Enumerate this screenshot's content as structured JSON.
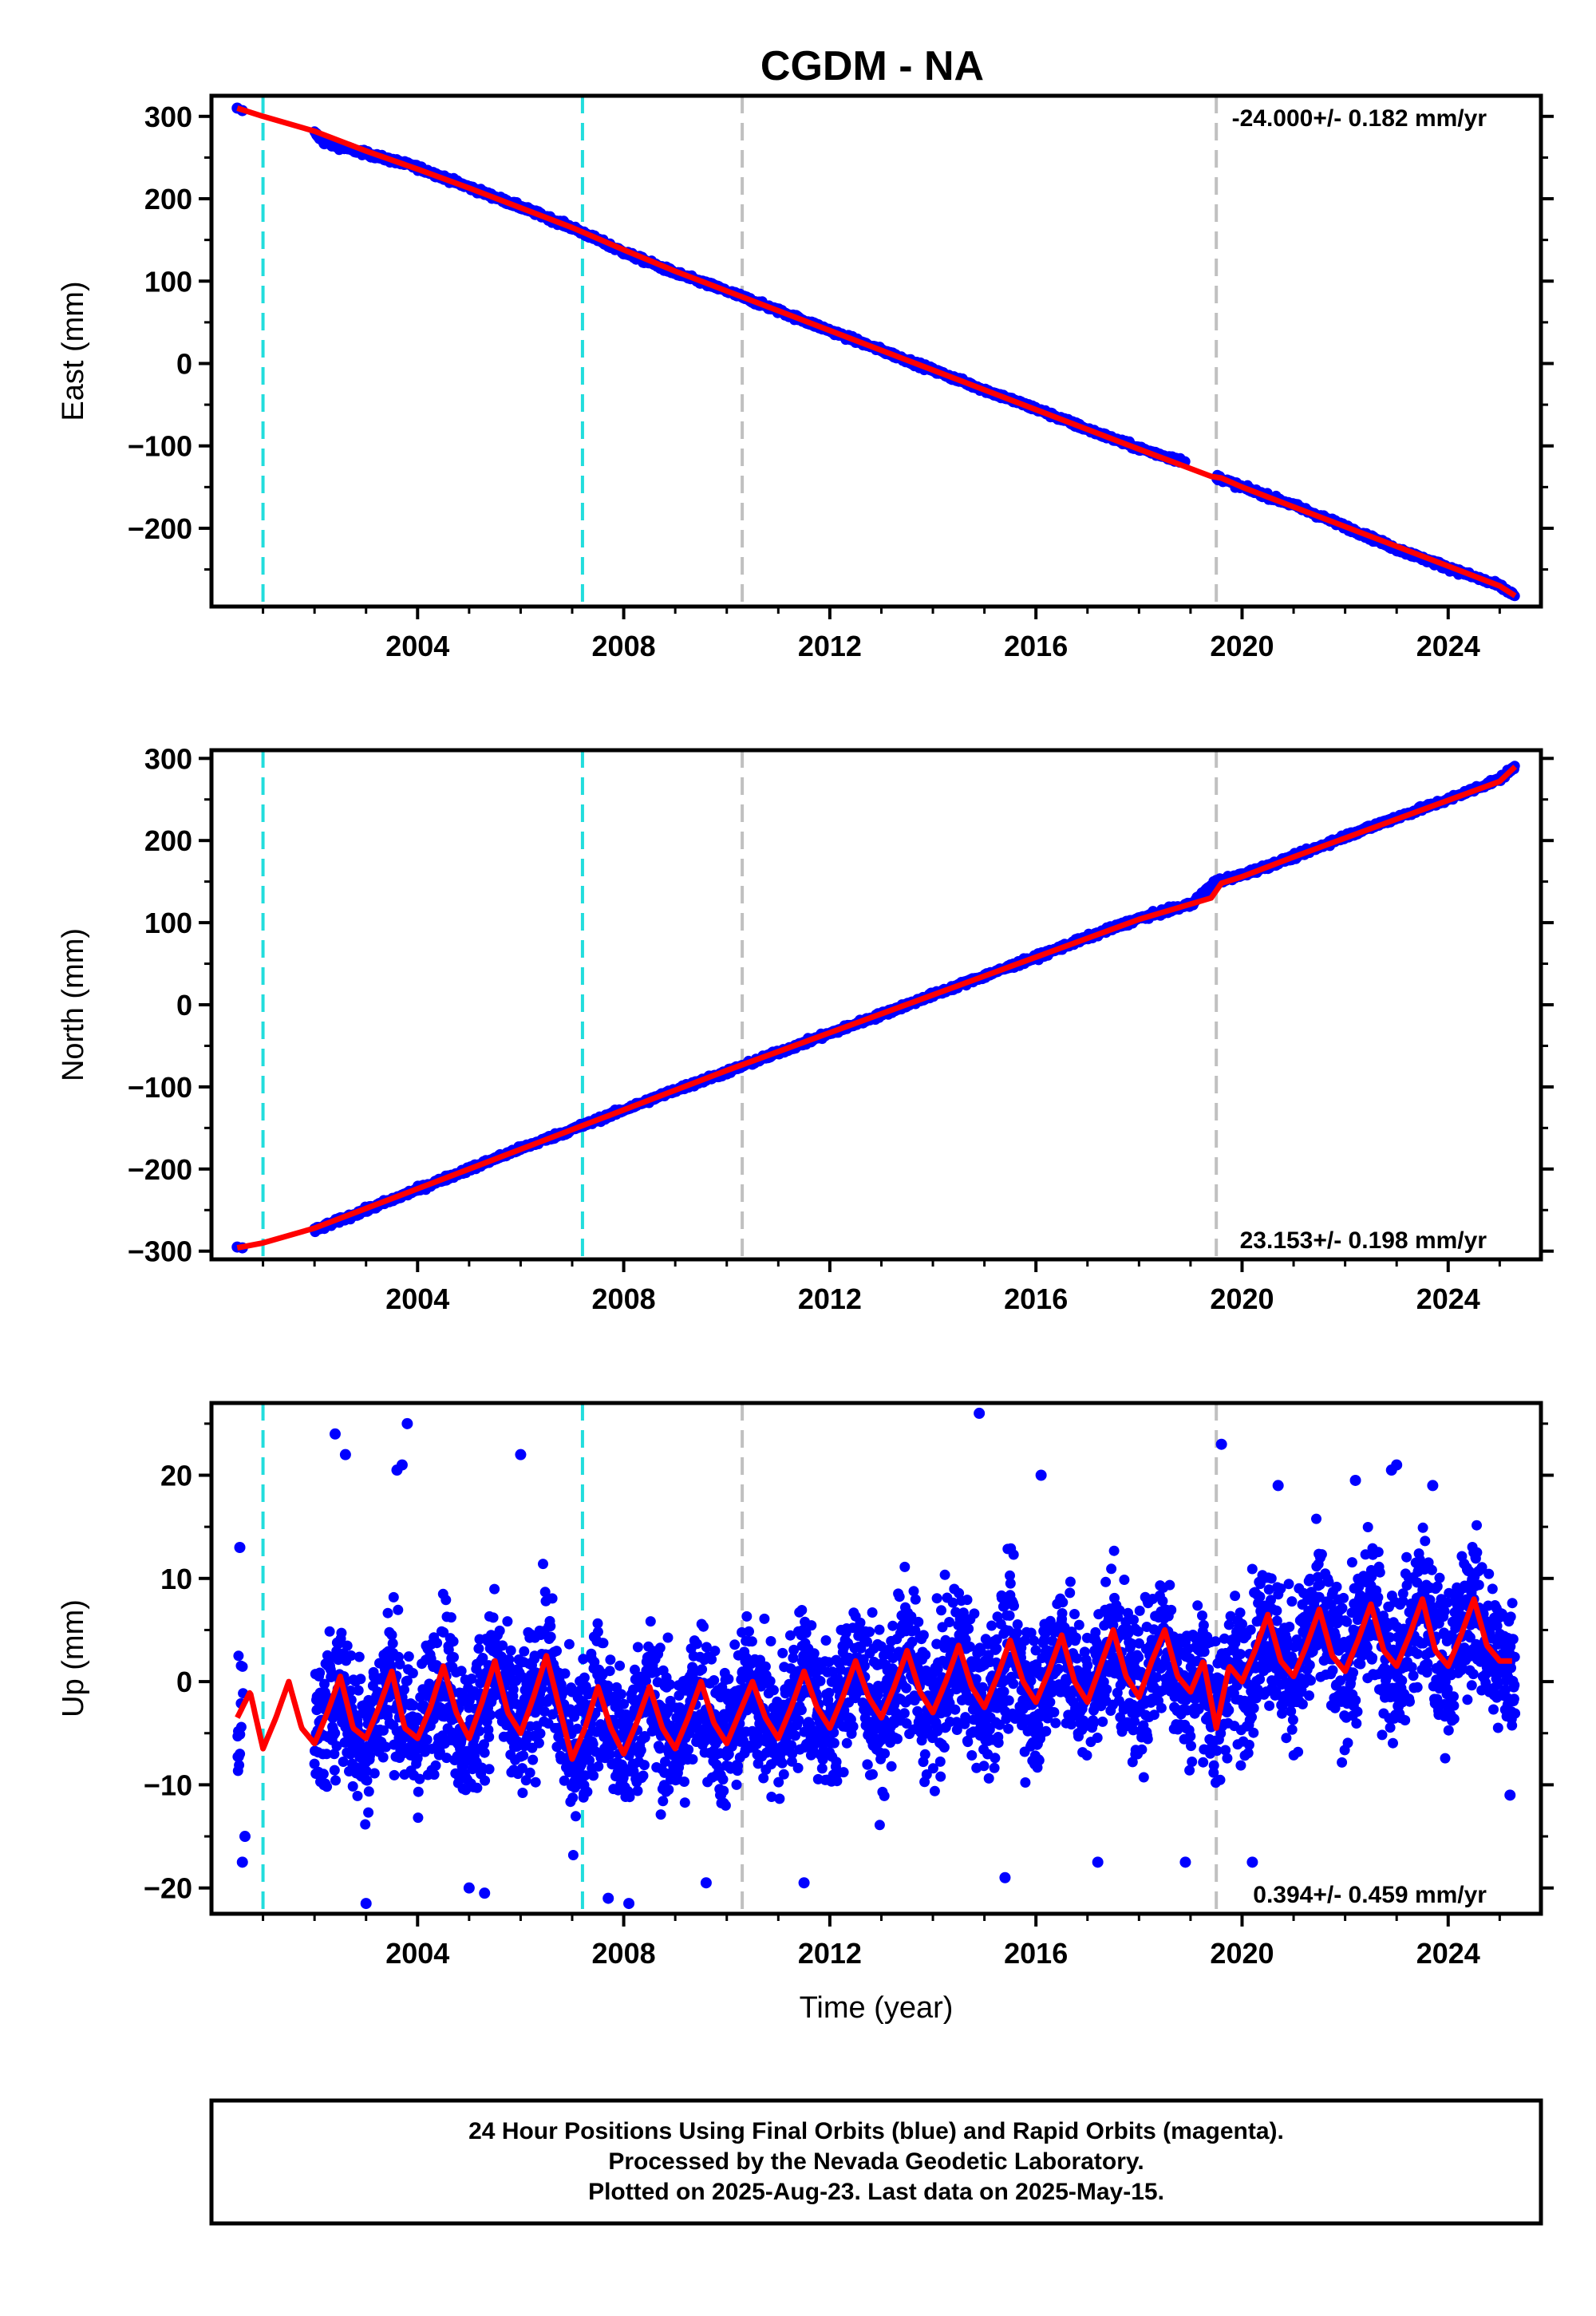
{
  "title": "CGDM - NA",
  "footer": {
    "lines": [
      "24 Hour Positions Using Final Orbits (blue) and Rapid Orbits (magenta).",
      "Processed by the Nevada Geodetic Laboratory.",
      "Plotted on 2025-Aug-23. Last data on 2025-May-15."
    ]
  },
  "colors": {
    "points": "#0000ff",
    "fit": "#ff0000",
    "equipment_line": "#22dddd",
    "event_line": "#c0c0c0"
  },
  "chart_data": [
    {
      "type": "scatter",
      "component": "east",
      "ylabel": "East (mm)",
      "xlabel": "",
      "xlim": [
        2000.0,
        2025.8
      ],
      "ylim": [
        -295,
        325
      ],
      "yticks": [
        300,
        200,
        100,
        0,
        -100,
        -200
      ],
      "ytick_labels": [
        "300",
        "200",
        "100",
        "0",
        "−100",
        "−200"
      ],
      "xticks": [
        2004,
        2008,
        2012,
        2016,
        2020,
        2024
      ],
      "xtick_labels": [
        "2004",
        "2008",
        "2012",
        "2016",
        "2020",
        "2024"
      ],
      "rate_label": "-24.000+/- 0.182 mm/yr",
      "rate_position": "top-right",
      "equipment_lines": [
        2001.0,
        2007.2
      ],
      "event_lines": [
        2010.3,
        2019.5
      ],
      "series": [
        {
          "values_kind": "points",
          "x": [
            2000.5,
            2000.6,
            2002.0,
            2002.2,
            2003.0,
            2004.0,
            2005.0,
            2006.0,
            2007.0,
            2008.0,
            2009.0,
            2010.0,
            2011.0,
            2012.0,
            2013.0,
            2014.0,
            2015.0,
            2016.0,
            2017.0,
            2018.0,
            2018.8,
            2019.6,
            2020.0,
            2021.0,
            2022.0,
            2023.0,
            2024.0,
            2025.0,
            2025.3
          ],
          "y": [
            310,
            307,
            280,
            268,
            255,
            238,
            214,
            190,
            165,
            135,
            110,
            88,
            64,
            40,
            16,
            -8,
            -32,
            -55,
            -80,
            -103,
            -118,
            -140,
            -150,
            -172,
            -198,
            -225,
            -248,
            -270,
            -282
          ]
        },
        {
          "values_kind": "fit",
          "x": [
            2000.5,
            2001.0,
            2002.0,
            2003.0,
            2004.0,
            2005.0,
            2006.0,
            2007.0,
            2008.0,
            2009.0,
            2010.0,
            2011.0,
            2012.0,
            2013.0,
            2014.0,
            2015.0,
            2016.0,
            2017.0,
            2018.0,
            2019.4,
            2019.6,
            2020.0,
            2021.0,
            2022.0,
            2023.0,
            2024.0,
            2025.0,
            2025.3
          ],
          "y": [
            310,
            300,
            282,
            258,
            236,
            213,
            189,
            165,
            138,
            112,
            88,
            64,
            40,
            16,
            -8,
            -32,
            -56,
            -80,
            -104,
            -137,
            -139,
            -150,
            -174,
            -198,
            -222,
            -246,
            -270,
            -282
          ]
        }
      ]
    },
    {
      "type": "scatter",
      "component": "north",
      "ylabel": "North (mm)",
      "xlabel": "",
      "xlim": [
        2000.0,
        2025.8
      ],
      "ylim": [
        -310,
        310
      ],
      "yticks": [
        300,
        200,
        100,
        0,
        -100,
        -200,
        -300
      ],
      "ytick_labels": [
        "300",
        "200",
        "100",
        "0",
        "−100",
        "−200",
        "−300"
      ],
      "xticks": [
        2004,
        2008,
        2012,
        2016,
        2020,
        2024
      ],
      "xtick_labels": [
        "2004",
        "2008",
        "2012",
        "2016",
        "2020",
        "2024"
      ],
      "rate_label": "23.153+/- 0.198 mm/yr",
      "rate_position": "bottom-right",
      "equipment_lines": [
        2001.0,
        2007.2
      ],
      "event_lines": [
        2010.3,
        2019.5
      ],
      "series": [
        {
          "values_kind": "points",
          "x": [
            2000.5,
            2000.6,
            2002.0,
            2002.5,
            2003.0,
            2004.0,
            2005.0,
            2006.0,
            2007.0,
            2008.0,
            2009.0,
            2010.0,
            2011.0,
            2012.0,
            2013.0,
            2014.0,
            2015.0,
            2016.0,
            2017.0,
            2018.0,
            2019.0,
            2019.5,
            2020.0,
            2021.0,
            2022.0,
            2023.0,
            2024.0,
            2025.0,
            2025.3
          ],
          "y": [
            -295,
            -296,
            -275,
            -262,
            -250,
            -225,
            -200,
            -175,
            -152,
            -128,
            -104,
            -82,
            -58,
            -35,
            -12,
            12,
            35,
            58,
            82,
            105,
            122,
            150,
            158,
            180,
            205,
            228,
            250,
            275,
            290
          ]
        },
        {
          "values_kind": "fit",
          "x": [
            2000.5,
            2001.0,
            2002.0,
            2003.0,
            2004.0,
            2005.0,
            2006.0,
            2007.0,
            2008.0,
            2009.0,
            2010.0,
            2011.0,
            2012.0,
            2013.0,
            2014.0,
            2015.0,
            2016.0,
            2017.0,
            2018.0,
            2019.4,
            2019.6,
            2020.0,
            2021.0,
            2022.0,
            2023.0,
            2024.0,
            2025.0,
            2025.3
          ],
          "y": [
            -296,
            -290,
            -272,
            -248,
            -224,
            -200,
            -176,
            -152,
            -128,
            -104,
            -80,
            -57,
            -34,
            -11,
            12,
            35,
            58,
            81,
            104,
            130,
            148,
            156,
            180,
            203,
            226,
            249,
            272,
            290
          ]
        }
      ]
    },
    {
      "type": "scatter",
      "component": "up",
      "ylabel": "Up (mm)",
      "xlabel": "Time (year)",
      "xlim": [
        2000.0,
        2025.8
      ],
      "ylim": [
        -22.5,
        27
      ],
      "yticks": [
        20,
        10,
        0,
        -10,
        -20
      ],
      "ytick_labels": [
        "20",
        "10",
        "0",
        "−10",
        "−20"
      ],
      "xticks": [
        2004,
        2008,
        2012,
        2016,
        2020,
        2024
      ],
      "xtick_labels": [
        "2004",
        "2008",
        "2012",
        "2016",
        "2020",
        "2024"
      ],
      "rate_label": "0.394+/- 0.459 mm/yr",
      "rate_position": "bottom-right",
      "equipment_lines": [
        2001.0,
        2007.2
      ],
      "event_lines": [
        2010.3,
        2019.5
      ],
      "point_scatter_mm": 5,
      "series": [
        {
          "values_kind": "fit",
          "x": [
            2000.5,
            2000.75,
            2001.0,
            2001.25,
            2001.5,
            2001.75,
            2002.0,
            2002.25,
            2002.5,
            2002.75,
            2003.0,
            2003.25,
            2003.5,
            2003.75,
            2004.0,
            2004.25,
            2004.5,
            2004.75,
            2005.0,
            2005.25,
            2005.5,
            2005.75,
            2006.0,
            2006.25,
            2006.5,
            2006.75,
            2007.0,
            2007.25,
            2007.5,
            2007.75,
            2008.0,
            2008.25,
            2008.5,
            2008.75,
            2009.0,
            2009.25,
            2009.5,
            2009.75,
            2010.0,
            2010.25,
            2010.5,
            2010.75,
            2011.0,
            2011.25,
            2011.5,
            2011.75,
            2012.0,
            2012.25,
            2012.5,
            2012.75,
            2013.0,
            2013.25,
            2013.5,
            2013.75,
            2014.0,
            2014.25,
            2014.5,
            2014.75,
            2015.0,
            2015.25,
            2015.5,
            2015.75,
            2016.0,
            2016.25,
            2016.5,
            2016.75,
            2017.0,
            2017.25,
            2017.5,
            2017.75,
            2018.0,
            2018.25,
            2018.5,
            2018.75,
            2019.0,
            2019.25,
            2019.5,
            2019.75,
            2020.0,
            2020.25,
            2020.5,
            2020.75,
            2021.0,
            2021.25,
            2021.5,
            2021.75,
            2022.0,
            2022.25,
            2022.5,
            2022.75,
            2023.0,
            2023.25,
            2023.5,
            2023.75,
            2024.0,
            2024.25,
            2024.5,
            2024.75,
            2025.0,
            2025.25
          ],
          "y": [
            -3.5,
            -1,
            -6.5,
            -3.5,
            0,
            -4.5,
            -6,
            -3,
            0.5,
            -4.5,
            -5.5,
            -2.5,
            1,
            -4.5,
            -5.5,
            -2.5,
            1.5,
            -3,
            -5.5,
            -2,
            2,
            -3,
            -5,
            -1.5,
            2.5,
            -2.5,
            -7.5,
            -4.5,
            -0.5,
            -4.5,
            -7,
            -4,
            -0.5,
            -4.5,
            -6.5,
            -3.5,
            0,
            -4,
            -6,
            -3,
            0,
            -3.5,
            -5.5,
            -2.5,
            1,
            -2.5,
            -4.5,
            -1.5,
            2,
            -1.5,
            -3.5,
            -0.5,
            3,
            -1,
            -3,
            0,
            3.5,
            -0.5,
            -2.5,
            0.5,
            4,
            0,
            -2,
            1,
            4.5,
            0,
            -2,
            1.5,
            5,
            0.5,
            -1.5,
            2,
            5,
            0.5,
            -1,
            2,
            -4.5,
            1.5,
            0,
            3,
            6.5,
            2,
            0.5,
            3.5,
            7,
            2.5,
            1,
            4,
            7.5,
            3,
            1.5,
            4.5,
            8,
            3,
            1.5,
            4.5,
            8,
            3.5,
            2,
            2
          ]
        },
        {
          "values_kind": "points_outliers",
          "x": [
            2000.55,
            2000.6,
            2000.65,
            2002.4,
            2002.6,
            2003.6,
            2003.7,
            2003.8,
            2006.0,
            2008.1,
            2007.7,
            2014.9,
            2016.1,
            2019.6,
            2020.7,
            2022.2,
            2022.9,
            2023.0,
            2003.0,
            2005.0,
            2005.3,
            2009.6,
            2011.5,
            2015.4,
            2017.2,
            2018.9,
            2020.2,
            2023.7,
            2025.2
          ],
          "y": [
            13,
            -17.5,
            -15,
            24,
            22,
            20.5,
            21,
            25,
            22,
            -21.5,
            -21,
            26,
            20,
            23,
            19,
            19.5,
            20.5,
            21,
            -21.5,
            -20,
            -20.5,
            -19.5,
            -19.5,
            -19,
            -17.5,
            -17.5,
            -17.5,
            19,
            -11
          ]
        }
      ]
    }
  ]
}
